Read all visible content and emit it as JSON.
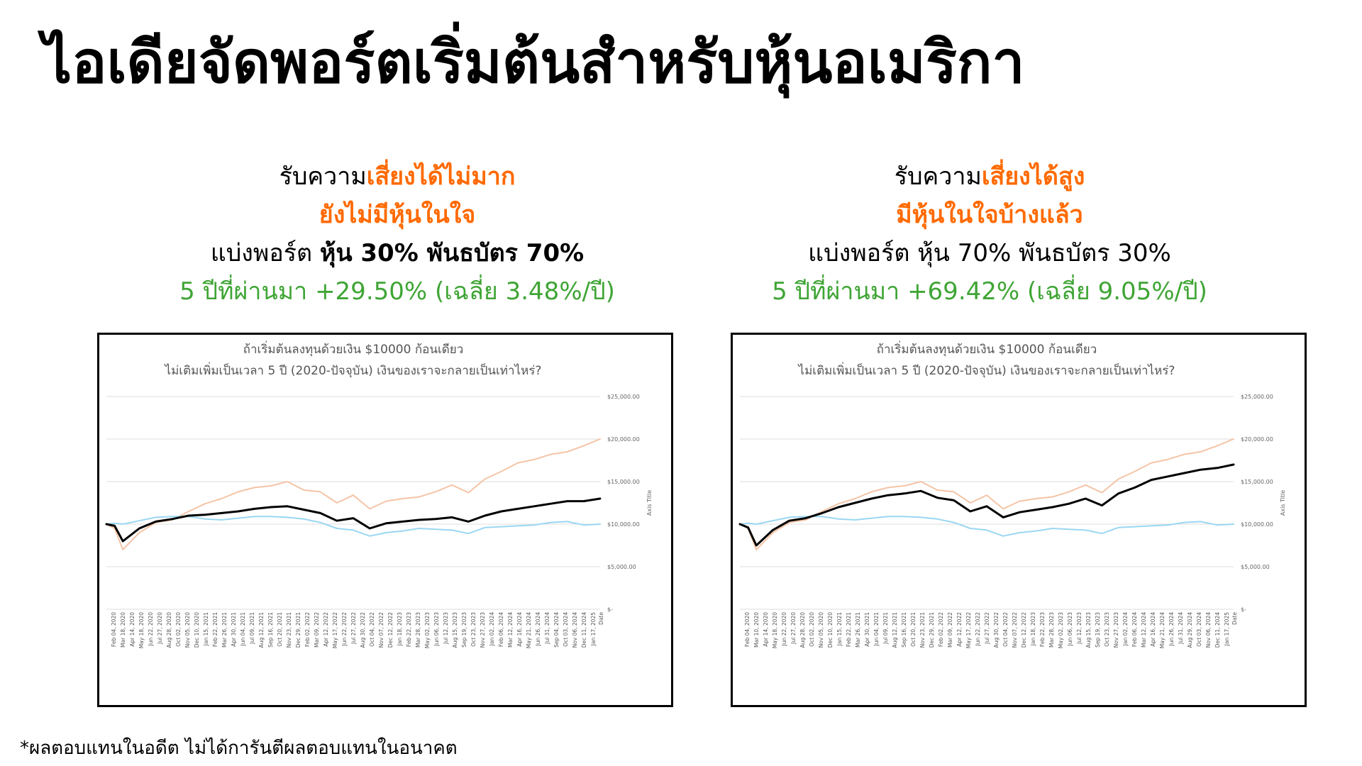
{
  "page": {
    "title": "ไอเดียจัดพอร์ตเริ่มต้นสำหรับหุ้นอเมริกา",
    "footnote": "*ผลตอบแทนในอดีต ไม่ได้การันตีผลตอบแทนในอนาคต"
  },
  "colors": {
    "accent_orange": "#ff6a00",
    "return_green": "#3fa535",
    "stocks_line": "#f5c4a6",
    "bonds_line": "#9ad7f2",
    "portfolio_line": "#000000"
  },
  "portfolios": [
    {
      "line1_prefix": "รับความ",
      "line1_accent": "เสี่ยงได้ไม่มาก",
      "line2_accent": "ยังไม่มีหุ้นในใจ",
      "line3_prefix": "แบ่งพอร์ต ",
      "line3_bold": "หุ้น 30% พันธบัตร 70%",
      "line4_return": "5 ปีที่ผ่านมา +29.50% (เฉลี่ย 3.48%/ปี)"
    },
    {
      "line1_prefix": "รับความ",
      "line1_accent": "เสี่ยงได้สูง",
      "line2_accent": "มีหุ้นในใจบ้างแล้ว",
      "line3_prefix": "แบ่งพอร์ต หุ้น 70% พันธบัตร 30%",
      "line3_bold": "",
      "line4_return": "5 ปีที่ผ่านมา +69.42% (เฉลี่ย 9.05%/ปี)"
    }
  ],
  "chart_data": [
    {
      "type": "line",
      "title": "ถ้าเริ่มต้นลงทุนด้วยเงิน $10000 ก้อนเดียว",
      "subtitle": "ไม่เติมเพิ่มเป็นเวลา 5 ปี (2020-ปัจจุบัน) เงินของเราจะกลายเป็นเท่าไหร่?",
      "xlabel": "Date",
      "ylabel": "Axis Title",
      "y_axis_side": "right",
      "ylim": [
        0,
        25000
      ],
      "y_ticks": [
        0,
        5000,
        10000,
        15000,
        20000,
        25000
      ],
      "y_tick_labels": [
        "$-",
        "$5,000.00",
        "$10,000.00",
        "$15,000.00",
        "$20,000.00",
        "$25,000.00"
      ],
      "grid": true,
      "x_tick_labels": [
        "Feb 04, 2020",
        "Mar 18, 2020",
        "Apr 14, 2020",
        "May 18, 2020",
        "Jun 22, 2020",
        "Jul 27, 2020",
        "Aug 28, 2020",
        "Oct 02, 2020",
        "Nov 05, 2020",
        "Dec 10, 2020",
        "Jan 15, 2021",
        "Feb 22, 2021",
        "Mar 26, 2021",
        "Apr 30, 2021",
        "Jun 04, 2021",
        "Jul 09, 2021",
        "Aug 12, 2021",
        "Sep 16, 2021",
        "Oct 20, 2021",
        "Nov 23, 2021",
        "Dec 29, 2021",
        "Feb 02, 2022",
        "Mar 09, 2022",
        "Apr 12, 2022",
        "May 17, 2022",
        "Jun 22, 2022",
        "Jul 27, 2022",
        "Aug 30, 2022",
        "Oct 04, 2022",
        "Nov 07, 2022",
        "Dec 12, 2022",
        "Jan 18, 2023",
        "Feb 22, 2023",
        "Mar 28, 2023",
        "May 02, 2023",
        "Jun 06, 2023",
        "Jul 12, 2023",
        "Aug 15, 2023",
        "Sep 19, 2023",
        "Oct 23, 2023",
        "Nov 27, 2023",
        "Jan 02, 2024",
        "Feb 06, 2024",
        "Mar 12, 2024",
        "Apr 16, 2024",
        "May 21, 2024",
        "Jun 26, 2024",
        "Jul 31, 2024",
        "Sep 04, 2024",
        "Oct 03, 2024",
        "Nov 06, 2024",
        "Dec 11, 2024",
        "Jan 17, 2025"
      ],
      "x_points": [
        "2020-02",
        "2020-03",
        "2020-04",
        "2020-06",
        "2020-08",
        "2020-10",
        "2020-12",
        "2021-02",
        "2021-04",
        "2021-06",
        "2021-08",
        "2021-10",
        "2021-12",
        "2022-02",
        "2022-04",
        "2022-06",
        "2022-08",
        "2022-10",
        "2022-12",
        "2023-02",
        "2023-04",
        "2023-06",
        "2023-08",
        "2023-10",
        "2023-12",
        "2024-02",
        "2024-04",
        "2024-06",
        "2024-08",
        "2024-10",
        "2024-12",
        "2025-02"
      ],
      "series": [
        {
          "values": [
            10000,
            9500,
            7000,
            9000,
            10200,
            10500,
            11500,
            12400,
            13000,
            13800,
            14300,
            14500,
            15000,
            14000,
            13800,
            12500,
            13400,
            11800,
            12700,
            13000,
            13200,
            13800,
            14600,
            13700,
            15300,
            16200,
            17200,
            17600,
            18200,
            18500,
            19200,
            20000
          ]
        },
        {
          "values": [
            10000,
            10100,
            10000,
            10400,
            10800,
            10900,
            10900,
            10600,
            10500,
            10700,
            10900,
            10900,
            10800,
            10600,
            10200,
            9500,
            9300,
            8600,
            9000,
            9200,
            9500,
            9400,
            9300,
            8900,
            9600,
            9700,
            9800,
            9900,
            10200,
            10300,
            9900,
            10000
          ]
        },
        {
          "values": [
            10000,
            9800,
            8000,
            9500,
            10300,
            10600,
            11000,
            11100,
            11300,
            11500,
            11800,
            12000,
            12100,
            11700,
            11300,
            10400,
            10700,
            9500,
            10100,
            10300,
            10500,
            10600,
            10800,
            10300,
            11000,
            11500,
            11800,
            12100,
            12400,
            12700,
            12700,
            13000
          ]
        }
      ]
    },
    {
      "type": "line",
      "title": "ถ้าเริ่มต้นลงทุนด้วยเงิน $10000 ก้อนเดียว",
      "subtitle": "ไม่เติมเพิ่มเป็นเวลา 5 ปี (2020-ปัจจุบัน) เงินของเราจะกลายเป็นเท่าไหร่?",
      "xlabel": "Date",
      "ylabel": "Axis Title",
      "y_axis_side": "right",
      "ylim": [
        0,
        25000
      ],
      "y_ticks": [
        0,
        5000,
        10000,
        15000,
        20000,
        25000
      ],
      "y_tick_labels": [
        "$-",
        "$5,000.00",
        "$10,000.00",
        "$15,000.00",
        "$20,000.00",
        "$25,000.00"
      ],
      "grid": true,
      "x_tick_labels": [
        "Feb 04, 2020",
        "Mar 10, 2020",
        "Apr 14, 2020",
        "May 18, 2020",
        "Jun 22, 2020",
        "Jul 27, 2020",
        "Aug 28, 2020",
        "Oct 02, 2020",
        "Nov 05, 2020",
        "Dec 10, 2020",
        "Jan 15, 2021",
        "Feb 22, 2021",
        "Mar 26, 2021",
        "Apr 30, 2021",
        "Jun 04, 2021",
        "Jul 09, 2021",
        "Aug 12, 2021",
        "Sep 16, 2021",
        "Oct 20, 2021",
        "Nov 23, 2021",
        "Dec 29, 2021",
        "Feb 02, 2022",
        "Mar 09, 2022",
        "Apr 12, 2022",
        "May 17, 2022",
        "Jun 22, 2022",
        "Jul 27, 2022",
        "Aug 30, 2022",
        "Oct 04, 2022",
        "Nov 07, 2022",
        "Dec 12, 2022",
        "Jan 18, 2023",
        "Feb 22, 2023",
        "Mar 28, 2023",
        "May 02, 2023",
        "Jun 06, 2023",
        "Jul 12, 2023",
        "Aug 15, 2023",
        "Sep 19, 2023",
        "Oct 23, 2023",
        "Nov 27, 2023",
        "Jan 02, 2024",
        "Feb 06, 2024",
        "Mar 12, 2024",
        "Apr 16, 2024",
        "May 21, 2024",
        "Jun 26, 2024",
        "Jul 31, 2024",
        "Aug 29, 2024",
        "Oct 03, 2024",
        "Nov 06, 2024",
        "Dec 11, 2024",
        "Jan 17, 2025"
      ],
      "x_points": [
        "2020-02",
        "2020-03",
        "2020-04",
        "2020-06",
        "2020-08",
        "2020-10",
        "2020-12",
        "2021-02",
        "2021-04",
        "2021-06",
        "2021-08",
        "2021-10",
        "2021-12",
        "2022-02",
        "2022-04",
        "2022-06",
        "2022-08",
        "2022-10",
        "2022-12",
        "2023-02",
        "2023-04",
        "2023-06",
        "2023-08",
        "2023-10",
        "2023-12",
        "2024-02",
        "2024-04",
        "2024-06",
        "2024-08",
        "2024-10",
        "2024-12",
        "2025-02"
      ],
      "series": [
        {
          "values": [
            10000,
            9500,
            7000,
            9000,
            10200,
            10500,
            11500,
            12400,
            13000,
            13800,
            14300,
            14500,
            15000,
            14000,
            13800,
            12500,
            13400,
            11800,
            12700,
            13000,
            13200,
            13800,
            14600,
            13700,
            15300,
            16200,
            17200,
            17600,
            18200,
            18500,
            19200,
            20000
          ]
        },
        {
          "values": [
            10000,
            10100,
            10000,
            10400,
            10800,
            10900,
            10900,
            10600,
            10500,
            10700,
            10900,
            10900,
            10800,
            10600,
            10200,
            9500,
            9300,
            8600,
            9000,
            9200,
            9500,
            9400,
            9300,
            8900,
            9600,
            9700,
            9800,
            9900,
            10200,
            10300,
            9900,
            10000
          ]
        },
        {
          "values": [
            10000,
            9600,
            7500,
            9300,
            10400,
            10700,
            11300,
            12000,
            12500,
            13000,
            13400,
            13600,
            13900,
            13100,
            12800,
            11500,
            12100,
            10800,
            11400,
            11700,
            12000,
            12400,
            13000,
            12200,
            13600,
            14300,
            15200,
            15600,
            16000,
            16400,
            16600,
            17000
          ]
        }
      ]
    }
  ]
}
